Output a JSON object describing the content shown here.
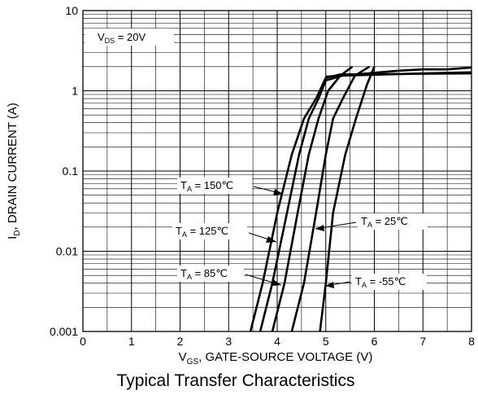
{
  "chart_data": {
    "type": "line",
    "title": "Typical Transfer Characteristics",
    "xlabel": {
      "main": "V",
      "sub": "GS",
      "rest": ", GATE-SOURCE VOLTAGE (V)"
    },
    "ylabel": {
      "main": "I",
      "sub": "D",
      "rest": ", DRAIN CURRENT (A)"
    },
    "xlim": [
      0,
      8
    ],
    "ylim": [
      0.001,
      10
    ],
    "yscale": "log",
    "grid": true,
    "x_ticks": [
      "0",
      "1",
      "2",
      "3",
      "4",
      "5",
      "6",
      "7",
      "8"
    ],
    "y_ticks": [
      "0.001",
      "0.01",
      "0.1",
      "1",
      "10"
    ],
    "condition": {
      "main": "V",
      "sub": "DS",
      "rest": " = 20V"
    },
    "series": [
      {
        "name": {
          "main": "T",
          "sub": "A",
          "rest": " = 150℃"
        },
        "points": [
          [
            3.45,
            0.001
          ],
          [
            3.7,
            0.004
          ],
          [
            4.0,
            0.03
          ],
          [
            4.3,
            0.16
          ],
          [
            4.55,
            0.45
          ],
          [
            4.8,
            0.8
          ],
          [
            5.0,
            1.45
          ],
          [
            5.3,
            1.6
          ],
          [
            8.0,
            1.65
          ]
        ]
      },
      {
        "name": {
          "main": "T",
          "sub": "A",
          "rest": " = 125℃"
        },
        "points": [
          [
            3.65,
            0.001
          ],
          [
            3.9,
            0.004
          ],
          [
            4.2,
            0.03
          ],
          [
            4.45,
            0.16
          ],
          [
            4.65,
            0.45
          ],
          [
            4.85,
            0.8
          ],
          [
            5.0,
            1.35
          ],
          [
            5.35,
            1.55
          ],
          [
            7.0,
            1.65
          ],
          [
            8.0,
            1.7
          ]
        ]
      },
      {
        "name": {
          "main": "T",
          "sub": "A",
          "rest": " = 85℃"
        },
        "points": [
          [
            3.9,
            0.001
          ],
          [
            4.15,
            0.004
          ],
          [
            4.42,
            0.03
          ],
          [
            4.65,
            0.16
          ],
          [
            4.85,
            0.45
          ],
          [
            5.05,
            1.0
          ],
          [
            5.3,
            1.55
          ],
          [
            5.55,
            2.0
          ]
        ]
      },
      {
        "name": {
          "main": "T",
          "sub": "A",
          "rest": " = 25℃"
        },
        "points": [
          [
            4.3,
            0.001
          ],
          [
            4.55,
            0.004
          ],
          [
            4.8,
            0.03
          ],
          [
            5.0,
            0.16
          ],
          [
            5.15,
            0.45
          ],
          [
            5.35,
            0.8
          ],
          [
            5.6,
            1.55
          ],
          [
            5.9,
            2.0
          ]
        ]
      },
      {
        "name": {
          "main": "T",
          "sub": "A",
          "rest": " = -55℃"
        },
        "points": [
          [
            4.88,
            0.001
          ],
          [
            5.0,
            0.004
          ],
          [
            5.15,
            0.03
          ],
          [
            5.4,
            0.16
          ],
          [
            5.62,
            0.45
          ],
          [
            5.85,
            1.2
          ],
          [
            6.0,
            2.0
          ]
        ]
      },
      {
        "name": "",
        "points": [
          [
            5.0,
            1.5
          ],
          [
            5.6,
            1.6
          ],
          [
            6.5,
            1.78
          ],
          [
            7.0,
            1.85
          ],
          [
            7.5,
            1.85
          ],
          [
            8.0,
            1.95
          ]
        ]
      }
    ]
  }
}
